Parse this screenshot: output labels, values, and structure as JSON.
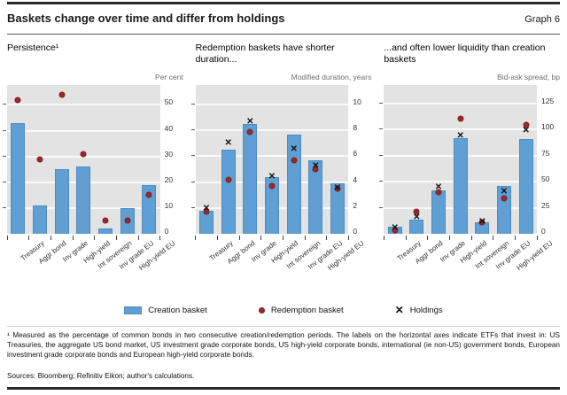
{
  "header": {
    "title": "Baskets change over time and differ from holdings",
    "graph_label": "Graph 6"
  },
  "categories": [
    "Treasury",
    "Aggr bond",
    "Inv grade",
    "High-yield",
    "Int sovereign",
    "Inv grade EU",
    "High-yield EU"
  ],
  "legend": {
    "creation": "Creation basket",
    "redemption": "Redemption basket",
    "holdings": "Holdings"
  },
  "colors": {
    "bar": "#5f9fd4",
    "bar_border": "#4d8cc0",
    "dot": "#9c2929",
    "x_marker": "#111111",
    "plot_bg": "#e3e3e3",
    "grid": "#fafafa",
    "rule": "#2a2a2a"
  },
  "chart_data": [
    {
      "type": "bar",
      "title": "Persistence¹",
      "unit": "Per cent",
      "ticks": [
        0,
        10,
        20,
        30,
        40,
        50
      ],
      "ylim": [
        0,
        57.7
      ],
      "categories": [
        "Treasury",
        "Aggr bond",
        "Inv grade",
        "High-yield",
        "Int sovereign",
        "Inv grade EU",
        "High-yield EU"
      ],
      "series": [
        {
          "name": "Creation basket",
          "marker": "bar",
          "values": [
            43,
            11,
            25,
            26,
            2,
            10,
            19
          ]
        },
        {
          "name": "Redemption basket",
          "marker": "dot",
          "values": [
            52,
            29,
            54,
            31,
            5,
            5,
            15
          ]
        }
      ]
    },
    {
      "type": "bar",
      "title": "Redemption baskets have shorter duration...",
      "unit": "Modified duration, years",
      "ticks": [
        0,
        2,
        4,
        6,
        8,
        10
      ],
      "ylim": [
        0,
        11.5
      ],
      "categories": [
        "Treasury",
        "Aggr bond",
        "Inv grade",
        "High-yield",
        "Int sovereign",
        "Inv grade EU",
        "High-yield EU"
      ],
      "series": [
        {
          "name": "Creation basket",
          "marker": "bar",
          "values": [
            1.8,
            6.5,
            8.5,
            4.4,
            7.7,
            5.7,
            3.9
          ]
        },
        {
          "name": "Redemption basket",
          "marker": "dot",
          "values": [
            1.7,
            4.2,
            7.9,
            3.7,
            5.7,
            5.0,
            3.5
          ]
        },
        {
          "name": "Holdings",
          "marker": "x",
          "values": [
            1.9,
            7.0,
            8.6,
            4.4,
            6.5,
            5.2,
            3.5
          ]
        }
      ]
    },
    {
      "type": "bar",
      "title": "...and often lower liquidity than creation baskets",
      "unit": "Bid-ask spread, bp",
      "ticks": [
        0,
        25,
        50,
        75,
        100,
        125
      ],
      "ylim": [
        0,
        142.9
      ],
      "categories": [
        "Treasury",
        "Aggr bond",
        "Inv grade",
        "High-yield",
        "Int sovereign",
        "Inv grade EU",
        "High-yield EU"
      ],
      "series": [
        {
          "name": "Creation basket",
          "marker": "bar",
          "values": [
            7,
            14,
            42,
            92,
            11,
            46,
            91
          ]
        },
        {
          "name": "Redemption basket",
          "marker": "dot",
          "values": [
            3,
            21,
            40,
            111,
            11,
            34,
            105
          ]
        },
        {
          "name": "Holdings",
          "marker": "x",
          "values": [
            5,
            15,
            44,
            94,
            11,
            40,
            99
          ]
        }
      ]
    }
  ],
  "footnote": "¹ Measured as the percentage of common bonds in two consecutive creation/redemption periods. The labels on the horizontal axes indicate ETFs that invest in: US Treasuries, the aggregate US bond market, US investment grade corporate bonds, US high-yield corporate bonds, international (ie non-US) government bonds, European investment grade corporate bonds and European high-yield corporate bonds.",
  "sources": "Sources: Bloomberg; Refinitiv Eikon; author's calculations."
}
